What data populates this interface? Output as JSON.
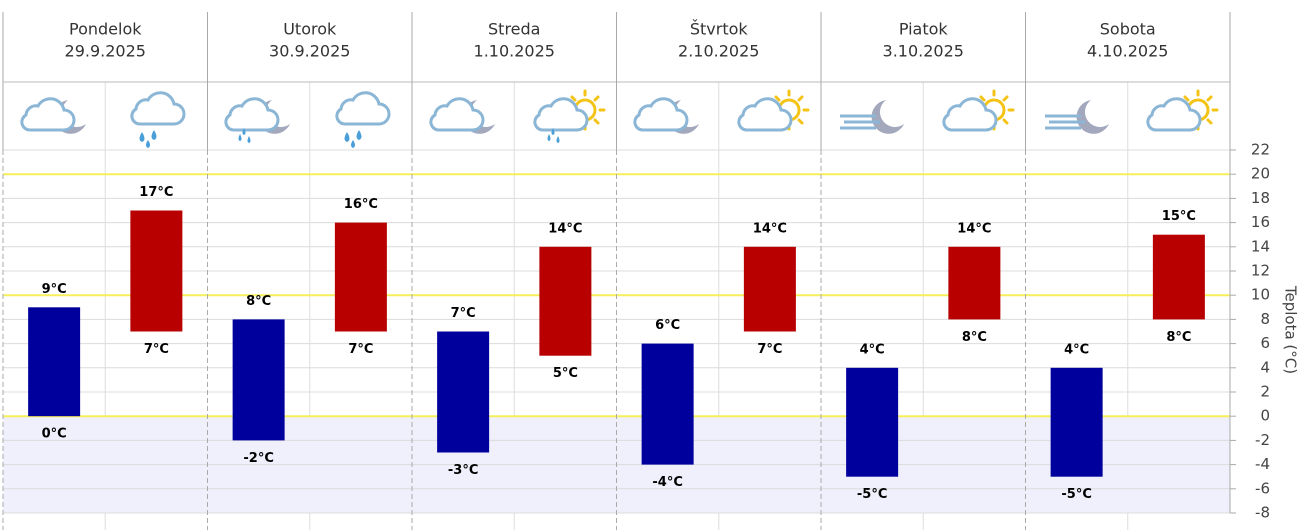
{
  "chart_data": {
    "type": "floating-bar",
    "y_label": "Teplota (°C)",
    "categories": [
      "Pondelok",
      "Utorok",
      "Streda",
      "Štvrtok",
      "Piatok",
      "Sobota"
    ],
    "dates": [
      "29.9.2025",
      "30.9.2025",
      "1.10.2025",
      "2.10.2025",
      "3.10.2025",
      "4.10.2025"
    ],
    "series": [
      {
        "color": "#00009c",
        "low": [
          0,
          -2,
          -3,
          -4,
          -5,
          -5
        ],
        "high": [
          9,
          8,
          7,
          6,
          4,
          4
        ],
        "low_labels": [
          "0°C",
          "-2°C",
          "-3°C",
          "-4°C",
          "-5°C",
          "-5°C"
        ],
        "high_labels": [
          "9°C",
          "8°C",
          "7°C",
          "6°C",
          "4°C",
          "4°C"
        ]
      },
      {
        "color": "#b80000",
        "low": [
          7,
          7,
          5,
          7,
          8,
          8
        ],
        "high": [
          17,
          16,
          14,
          14,
          14,
          15
        ],
        "low_labels": [
          "7°C",
          "7°C",
          "5°C",
          "7°C",
          "8°C",
          "8°C"
        ],
        "high_labels": [
          "17°C",
          "16°C",
          "14°C",
          "14°C",
          "14°C",
          "15°C"
        ]
      }
    ],
    "ylim": [
      -8,
      22
    ],
    "yticks": [
      -8,
      -6,
      -4,
      -2,
      0,
      2,
      4,
      6,
      8,
      10,
      12,
      14,
      16,
      18,
      20,
      22
    ],
    "grid": true,
    "highlight_lines": [
      0,
      10,
      20
    ],
    "highlight_color": "#f5ef5a",
    "shade_below": {
      "value": 0,
      "color": "#eff0fb"
    }
  }
}
